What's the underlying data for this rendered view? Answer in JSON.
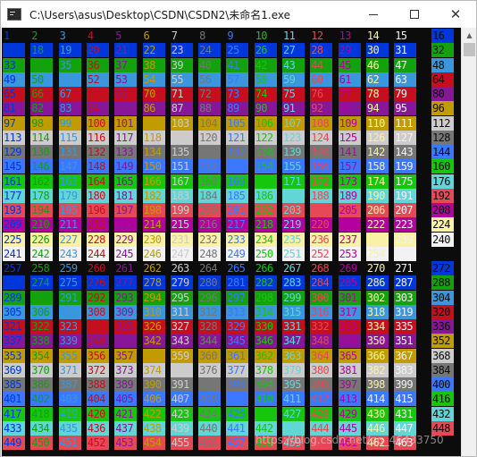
{
  "window": {
    "title": "C:\\Users\\asus\\Desktop\\CSDN\\CSDN2\\未命名1.exe",
    "minimize_glyph": "—",
    "maximize_glyph": "☐",
    "close_glyph": "✕",
    "icon": "console-app-icon"
  },
  "console": {
    "background": "#0c0c0c",
    "fg_palette": [
      "#0c0c0c",
      "#0037da",
      "#13a10e",
      "#3a96dd",
      "#c50f1f",
      "#881798",
      "#c19c00",
      "#cccccc",
      "#767676",
      "#3b78ff",
      "#16c60c",
      "#61d6d6",
      "#e74856",
      "#b4009e",
      "#f9f1a5",
      "#f2f2f2"
    ],
    "bg_palette": [
      "#0c0c0c",
      "#0037da",
      "#13a10e",
      "#3a96dd",
      "#c50f1f",
      "#881798",
      "#c19c00",
      "#cccccc",
      "#767676",
      "#3b78ff",
      "#16c60c",
      "#61d6d6",
      "#e74856",
      "#b4009e",
      "#f9f1a5",
      "#f2f2f2"
    ],
    "first_code": 1,
    "last_code": 463,
    "codes_per_row": 16,
    "visible_rows": 29,
    "last_column_shift_rows": [
      2,
      16,
      30,
      44,
      58,
      72,
      86,
      100,
      114,
      128,
      142,
      156,
      170,
      184,
      198,
      212,
      226,
      240,
      254,
      268,
      282,
      296,
      310,
      324,
      338,
      352,
      366,
      380,
      394
    ]
  },
  "scrollbar": {
    "up_arrow": "▲"
  },
  "watermark": "https://blog.csdn.net/qq_46433750"
}
